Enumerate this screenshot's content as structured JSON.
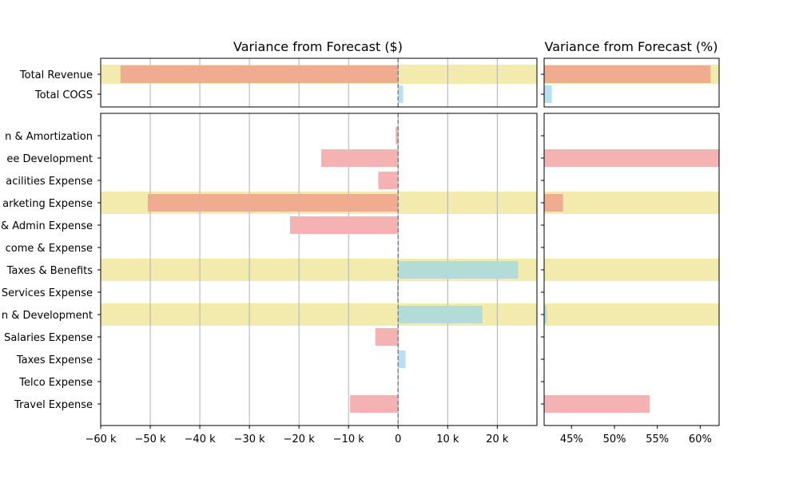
{
  "chart_data": [
    {
      "type": "bar",
      "orientation": "horizontal",
      "title": "Variance from Forecast ($)",
      "x_tick_labels": [
        "−60 k",
        "−50 k",
        "−40 k",
        "−30 k",
        "−20 k",
        "−10 k",
        "0",
        "10 k",
        "20 k"
      ],
      "xlim": [
        -60000,
        28000
      ],
      "grid": "vertical",
      "reference_line_x": 0,
      "top_panel": {
        "categories": [
          "Total Revenue",
          "Total COGS"
        ],
        "values": [
          -56000,
          1000
        ],
        "highlighted": [
          true,
          false
        ]
      },
      "bottom_panel": {
        "categories": [
          "Depreciation & Amortization",
          "Employee Development",
          "Facilities Expense",
          "Marketing Expense",
          "General & Admin Expense",
          "Other Income & Expense",
          "Payroll Taxes & Benefits",
          "Professional Services Expense",
          "Research & Development",
          "Salaries Expense",
          "Taxes Expense",
          "Telco Expense",
          "Travel Expense"
        ],
        "visible_labels": [
          "n & Amortization",
          "ee Development",
          "acilities Expense",
          "arketing Expense",
          "& Admin Expense",
          "come & Expense",
          "Taxes & Benefits",
          "Services Expense",
          "n & Development",
          "Salaries Expense",
          "Taxes Expense",
          "Telco Expense",
          "Travel Expense"
        ],
        "values": [
          -500,
          -15500,
          -4000,
          -50500,
          -21800,
          200,
          24200,
          -200,
          17000,
          -4600,
          1500,
          0,
          -9700
        ],
        "highlighted": [
          false,
          false,
          false,
          true,
          false,
          false,
          true,
          false,
          true,
          false,
          false,
          false,
          false
        ]
      }
    },
    {
      "type": "bar",
      "orientation": "horizontal",
      "title": "Variance from Forecast (%)",
      "x_tick_labels": [
        "45%",
        "50%",
        "55%",
        "60%"
      ],
      "x_ticks": [
        45,
        50,
        55,
        60
      ],
      "xlim": [
        41.8,
        62.2
      ],
      "grid": "off",
      "top_panel": {
        "categories": [
          "Total Revenue",
          "Total COGS"
        ],
        "values": [
          61.2,
          42.7
        ],
        "highlighted": [
          true,
          false
        ]
      },
      "bottom_panel": {
        "categories": [
          "Depreciation & Amortization",
          "Employee Development",
          "Facilities Expense",
          "Marketing Expense",
          "General & Admin Expense",
          "Other Income & Expense",
          "Payroll Taxes & Benefits",
          "Professional Services Expense",
          "Research & Development",
          "Salaries Expense",
          "Taxes Expense",
          "Telco Expense",
          "Travel Expense"
        ],
        "values": [
          null,
          65,
          null,
          44,
          null,
          null,
          null,
          null,
          42.1,
          null,
          null,
          null,
          54.1
        ],
        "highlighted": [
          false,
          false,
          false,
          true,
          false,
          false,
          true,
          false,
          true,
          false,
          false,
          false,
          false
        ]
      }
    }
  ],
  "colors": {
    "highlight_band": "#f3ebae",
    "positive_bar": "#b8e0f2",
    "negative_bar": "#f5b2b2",
    "negative_on_highlight": "#f0ac90",
    "positive_on_highlight": "#b3dcd6",
    "grid": "#b0b0b0",
    "zero_line": "#808080"
  }
}
